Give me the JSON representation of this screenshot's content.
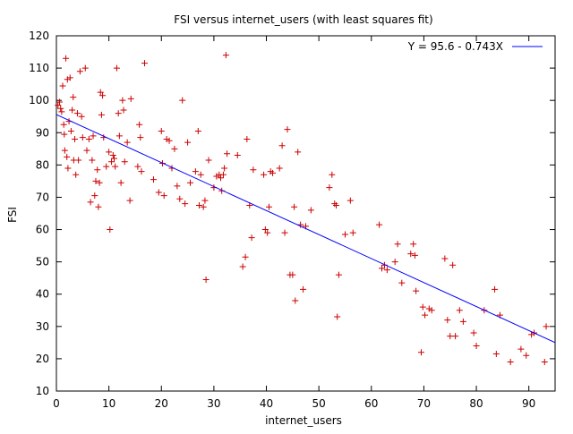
{
  "chart_data": {
    "type": "scatter",
    "title": "FSI versus internet_users (with least squares fit)",
    "xlabel": "internet_users",
    "ylabel": "FSI",
    "xlim": [
      0,
      95
    ],
    "ylim": [
      10,
      120
    ],
    "xticks": [
      0,
      10,
      20,
      30,
      40,
      50,
      60,
      70,
      80,
      90
    ],
    "yticks": [
      10,
      20,
      30,
      40,
      50,
      60,
      70,
      80,
      90,
      100,
      110,
      120
    ],
    "grid": false,
    "legend_position": "top-right",
    "colors": {
      "points": "#cc0000",
      "fit_line": "#0000ff",
      "axes": "#000000"
    },
    "series": [
      {
        "name": "",
        "type": "scatter",
        "marker": "plus",
        "points": [
          [
            0.3,
            98.5
          ],
          [
            0.6,
            99.5
          ],
          [
            0.8,
            97.5
          ],
          [
            1.0,
            96.5
          ],
          [
            1.2,
            104.5
          ],
          [
            1.4,
            92.5
          ],
          [
            1.5,
            89.5
          ],
          [
            1.6,
            84.5
          ],
          [
            1.8,
            113.0
          ],
          [
            2.0,
            82.5
          ],
          [
            2.1,
            106.5
          ],
          [
            2.2,
            79.0
          ],
          [
            2.4,
            93.5
          ],
          [
            2.6,
            107.0
          ],
          [
            2.8,
            90.5
          ],
          [
            3.0,
            97.0
          ],
          [
            3.2,
            101.0
          ],
          [
            3.3,
            81.5
          ],
          [
            3.5,
            88.0
          ],
          [
            3.7,
            77.0
          ],
          [
            4.0,
            96.0
          ],
          [
            4.2,
            81.5
          ],
          [
            4.5,
            109.0
          ],
          [
            4.8,
            95.0
          ],
          [
            5.0,
            88.5
          ],
          [
            5.5,
            110.0
          ],
          [
            5.8,
            84.5
          ],
          [
            6.2,
            88.0
          ],
          [
            6.5,
            68.5
          ],
          [
            6.8,
            81.5
          ],
          [
            7.0,
            89.0
          ],
          [
            7.3,
            70.5
          ],
          [
            7.5,
            75.0
          ],
          [
            7.8,
            78.5
          ],
          [
            8.0,
            67.0
          ],
          [
            8.2,
            74.5
          ],
          [
            8.4,
            102.5
          ],
          [
            8.6,
            95.5
          ],
          [
            8.8,
            101.5
          ],
          [
            9.0,
            88.5
          ],
          [
            9.5,
            79.5
          ],
          [
            10.0,
            84.0
          ],
          [
            10.2,
            60.0
          ],
          [
            10.5,
            81.0
          ],
          [
            10.8,
            83.0
          ],
          [
            11.0,
            82.0
          ],
          [
            11.2,
            79.5
          ],
          [
            11.5,
            110.0
          ],
          [
            11.8,
            96.0
          ],
          [
            12.0,
            89.0
          ],
          [
            12.3,
            74.5
          ],
          [
            12.6,
            100.0
          ],
          [
            12.8,
            97.0
          ],
          [
            13.0,
            81.0
          ],
          [
            13.5,
            87.0
          ],
          [
            14.0,
            69.0
          ],
          [
            14.2,
            100.5
          ],
          [
            15.5,
            79.5
          ],
          [
            15.8,
            92.5
          ],
          [
            16.0,
            88.5
          ],
          [
            16.2,
            78.0
          ],
          [
            16.8,
            111.5
          ],
          [
            18.5,
            75.5
          ],
          [
            19.5,
            71.5
          ],
          [
            20.0,
            90.5
          ],
          [
            20.2,
            80.5
          ],
          [
            20.5,
            70.5
          ],
          [
            21.0,
            88.0
          ],
          [
            21.5,
            87.5
          ],
          [
            22.0,
            79.0
          ],
          [
            22.5,
            85.0
          ],
          [
            23.0,
            73.5
          ],
          [
            23.5,
            69.5
          ],
          [
            24.0,
            100.0
          ],
          [
            24.5,
            68.0
          ],
          [
            25.0,
            87.0
          ],
          [
            25.5,
            74.5
          ],
          [
            26.5,
            78.0
          ],
          [
            27.0,
            90.5
          ],
          [
            27.2,
            67.5
          ],
          [
            27.5,
            77.0
          ],
          [
            28.0,
            67.0
          ],
          [
            28.3,
            69.0
          ],
          [
            28.5,
            44.5
          ],
          [
            29.0,
            81.5
          ],
          [
            30.0,
            73.0
          ],
          [
            30.5,
            76.5
          ],
          [
            31.0,
            77.0
          ],
          [
            31.3,
            76.0
          ],
          [
            31.5,
            72.0
          ],
          [
            31.8,
            77.0
          ],
          [
            32.0,
            79.0
          ],
          [
            32.3,
            114.0
          ],
          [
            32.5,
            83.5
          ],
          [
            34.5,
            83.0
          ],
          [
            35.5,
            48.5
          ],
          [
            36.0,
            51.5
          ],
          [
            36.3,
            88.0
          ],
          [
            36.8,
            67.5
          ],
          [
            37.2,
            57.5
          ],
          [
            37.5,
            78.5
          ],
          [
            39.5,
            77.0
          ],
          [
            39.8,
            60.0
          ],
          [
            40.2,
            59.0
          ],
          [
            40.5,
            67.0
          ],
          [
            40.8,
            78.0
          ],
          [
            41.2,
            77.5
          ],
          [
            42.5,
            79.0
          ],
          [
            43.0,
            86.0
          ],
          [
            43.5,
            59.0
          ],
          [
            44.0,
            91.0
          ],
          [
            44.5,
            46.0
          ],
          [
            45.0,
            46.0
          ],
          [
            45.3,
            67.0
          ],
          [
            45.5,
            38.0
          ],
          [
            46.0,
            84.0
          ],
          [
            46.5,
            61.5
          ],
          [
            47.0,
            41.5
          ],
          [
            47.5,
            61.0
          ],
          [
            48.5,
            66.0
          ],
          [
            52.0,
            73.0
          ],
          [
            52.5,
            77.0
          ],
          [
            53.0,
            68.0
          ],
          [
            53.3,
            67.5
          ],
          [
            53.5,
            33.0
          ],
          [
            53.8,
            46.0
          ],
          [
            55.0,
            58.5
          ],
          [
            56.0,
            69.0
          ],
          [
            56.5,
            59.0
          ],
          [
            61.5,
            61.5
          ],
          [
            62.0,
            48.0
          ],
          [
            62.5,
            49.0
          ],
          [
            63.0,
            47.5
          ],
          [
            64.5,
            50.0
          ],
          [
            65.0,
            55.5
          ],
          [
            65.8,
            43.5
          ],
          [
            67.5,
            52.5
          ],
          [
            68.0,
            55.5
          ],
          [
            68.3,
            52.0
          ],
          [
            68.5,
            41.0
          ],
          [
            69.5,
            22.0
          ],
          [
            69.8,
            36.0
          ],
          [
            70.2,
            33.5
          ],
          [
            71.0,
            35.5
          ],
          [
            71.5,
            35.0
          ],
          [
            74.0,
            51.0
          ],
          [
            74.5,
            32.0
          ],
          [
            75.0,
            27.0
          ],
          [
            75.5,
            49.0
          ],
          [
            76.0,
            27.0
          ],
          [
            76.8,
            35.0
          ],
          [
            77.5,
            31.5
          ],
          [
            79.5,
            28.0
          ],
          [
            80.0,
            24.0
          ],
          [
            81.5,
            35.0
          ],
          [
            83.5,
            41.5
          ],
          [
            83.8,
            21.5
          ],
          [
            84.5,
            33.5
          ],
          [
            86.5,
            19.0
          ],
          [
            88.5,
            23.0
          ],
          [
            89.5,
            21.0
          ],
          [
            90.5,
            27.5
          ],
          [
            91.0,
            28.0
          ],
          [
            93.0,
            19.0
          ],
          [
            93.3,
            30.0
          ]
        ]
      },
      {
        "name": "Y = 95.6 - 0.743X",
        "type": "line",
        "intercept": 95.6,
        "slope": -0.743
      }
    ]
  }
}
